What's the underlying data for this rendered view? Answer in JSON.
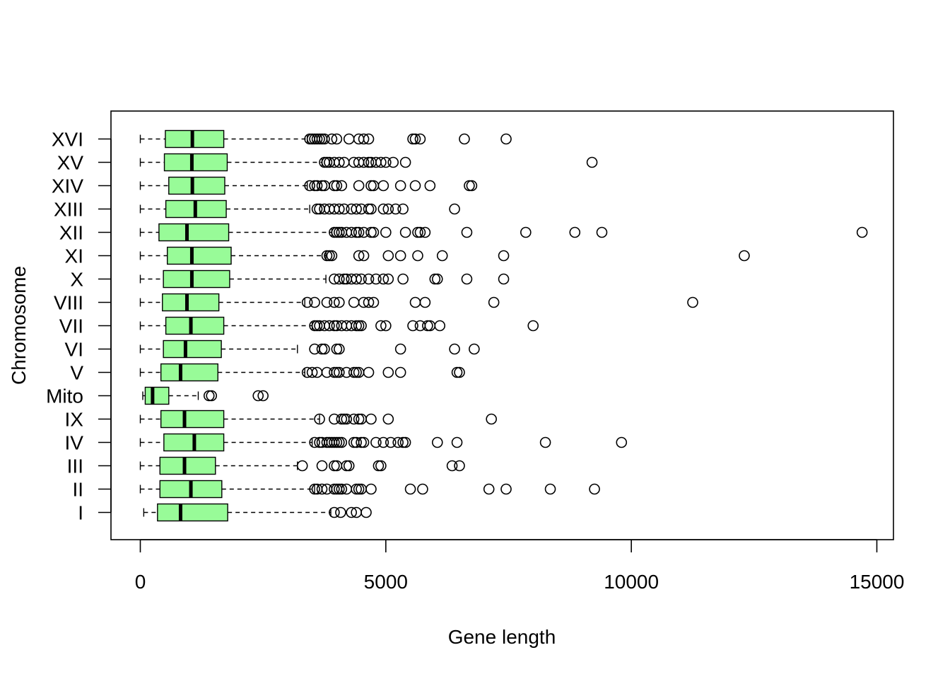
{
  "chart_data": {
    "type": "boxplot",
    "orientation": "horizontal",
    "title": "",
    "xlabel": "Gene length",
    "ylabel": "Chromosome",
    "xlim": [
      -600,
      15300
    ],
    "xticks": [
      0,
      5000,
      10000,
      15000
    ],
    "xtick_labels": [
      "0",
      "5000",
      "10000",
      "15000"
    ],
    "grid": false,
    "box_color": "#98FB98",
    "categories": [
      "I",
      "II",
      "III",
      "IV",
      "IX",
      "Mito",
      "V",
      "VI",
      "VII",
      "VIII",
      "X",
      "XI",
      "XII",
      "XIII",
      "XIV",
      "XV",
      "XVI"
    ],
    "boxes": [
      {
        "name": "I",
        "whisker_low": 70,
        "q1": 350,
        "median": 820,
        "q3": 1780,
        "whisker_high": 3880,
        "outliers": [
          3950,
          4080,
          4300,
          4400,
          4600
        ]
      },
      {
        "name": "II",
        "whisker_low": 0,
        "q1": 400,
        "median": 1030,
        "q3": 1660,
        "whisker_high": 3550,
        "outliers": [
          3550,
          3600,
          3700,
          3800,
          3950,
          4000,
          4050,
          4100,
          4200,
          4400,
          4450,
          4500,
          4700,
          5500,
          5750,
          7100,
          7450,
          8350,
          9250
        ]
      },
      {
        "name": "III",
        "whisker_low": 0,
        "q1": 400,
        "median": 900,
        "q3": 1530,
        "whisker_high": 3200,
        "outliers": [
          3300,
          3700,
          3950,
          4000,
          4200,
          4250,
          4850,
          4900,
          6350,
          6500
        ]
      },
      {
        "name": "IV",
        "whisker_low": 0,
        "q1": 480,
        "median": 1100,
        "q3": 1700,
        "whisker_high": 3500,
        "outliers": [
          3550,
          3650,
          3700,
          3800,
          3850,
          3900,
          3950,
          4000,
          4050,
          4100,
          4350,
          4400,
          4500,
          4550,
          4800,
          4950,
          5100,
          5250,
          5350,
          5400,
          6050,
          6450,
          8250,
          9800
        ]
      },
      {
        "name": "IX",
        "whisker_low": 0,
        "q1": 420,
        "median": 900,
        "q3": 1700,
        "whisker_high": 3650,
        "outliers": [
          3650,
          3950,
          4100,
          4150,
          4200,
          4350,
          4450,
          4500,
          4700,
          5050,
          7150
        ]
      },
      {
        "name": "Mito",
        "whisker_low": 50,
        "q1": 100,
        "median": 250,
        "q3": 580,
        "whisker_high": 1180,
        "outliers": [
          1400,
          1450,
          2400,
          2500
        ]
      },
      {
        "name": "V",
        "whisker_low": 0,
        "q1": 420,
        "median": 820,
        "q3": 1580,
        "whisker_high": 3350,
        "outliers": [
          3400,
          3500,
          3600,
          3800,
          3950,
          4000,
          4050,
          4200,
          4350,
          4400,
          4450,
          4650,
          5050,
          5300,
          6450,
          6500
        ]
      },
      {
        "name": "VI",
        "whisker_low": 0,
        "q1": 470,
        "median": 920,
        "q3": 1650,
        "whisker_high": 3200,
        "outliers": [
          3550,
          3700,
          3750,
          4000,
          4050,
          5300,
          6400,
          6800
        ]
      },
      {
        "name": "VII",
        "whisker_low": 0,
        "q1": 520,
        "median": 1030,
        "q3": 1700,
        "whisker_high": 3500,
        "outliers": [
          3550,
          3600,
          3650,
          3750,
          3850,
          3950,
          4000,
          4100,
          4200,
          4300,
          4400,
          4450,
          4500,
          4900,
          5000,
          5550,
          5700,
          5850,
          5900,
          6100,
          8000
        ]
      },
      {
        "name": "VIII",
        "whisker_low": 0,
        "q1": 450,
        "median": 950,
        "q3": 1600,
        "whisker_high": 3350,
        "outliers": [
          3400,
          3550,
          3800,
          3950,
          4050,
          4350,
          4550,
          4650,
          4750,
          5600,
          5800,
          7200,
          11250
        ]
      },
      {
        "name": "X",
        "whisker_low": 0,
        "q1": 470,
        "median": 1050,
        "q3": 1820,
        "whisker_high": 3780,
        "outliers": [
          3950,
          4050,
          4150,
          4200,
          4300,
          4400,
          4500,
          4650,
          4800,
          4950,
          5050,
          5350,
          6000,
          6050,
          6650,
          7400
        ]
      },
      {
        "name": "XI",
        "whisker_low": 0,
        "q1": 550,
        "median": 1050,
        "q3": 1850,
        "whisker_high": 3780,
        "outliers": [
          3800,
          3850,
          3900,
          4450,
          4550,
          5050,
          5300,
          5650,
          6150,
          7400,
          12300
        ]
      },
      {
        "name": "XII",
        "whisker_low": 0,
        "q1": 380,
        "median": 950,
        "q3": 1800,
        "whisker_high": 3900,
        "outliers": [
          3950,
          4000,
          4050,
          4100,
          4200,
          4300,
          4400,
          4450,
          4550,
          4700,
          4750,
          5000,
          5400,
          5650,
          5700,
          5800,
          6650,
          7850,
          8850,
          9400,
          14700
        ]
      },
      {
        "name": "XIII",
        "whisker_low": 0,
        "q1": 520,
        "median": 1120,
        "q3": 1750,
        "whisker_high": 3450,
        "outliers": [
          3600,
          3650,
          3750,
          3850,
          3950,
          4050,
          4150,
          4300,
          4400,
          4500,
          4650,
          4700,
          4950,
          5050,
          5200,
          5350,
          6400
        ]
      },
      {
        "name": "XIV",
        "whisker_low": 0,
        "q1": 580,
        "median": 1060,
        "q3": 1720,
        "whisker_high": 3400,
        "outliers": [
          3450,
          3550,
          3600,
          3700,
          3750,
          3950,
          4000,
          4100,
          4450,
          4700,
          4750,
          4950,
          5300,
          5600,
          5900,
          6700,
          6750
        ]
      },
      {
        "name": "XV",
        "whisker_low": 0,
        "q1": 490,
        "median": 1050,
        "q3": 1770,
        "whisker_high": 3700,
        "outliers": [
          3750,
          3800,
          3850,
          3950,
          4050,
          4150,
          4350,
          4450,
          4550,
          4650,
          4700,
          4800,
          4900,
          5000,
          5150,
          5400,
          9200
        ]
      },
      {
        "name": "XVI",
        "whisker_low": 0,
        "q1": 510,
        "median": 1060,
        "q3": 1700,
        "whisker_high": 3400,
        "outliers": [
          3450,
          3500,
          3550,
          3600,
          3650,
          3700,
          3750,
          3900,
          4000,
          4250,
          4450,
          4550,
          4650,
          5550,
          5600,
          5700,
          6600,
          7450
        ]
      }
    ]
  }
}
